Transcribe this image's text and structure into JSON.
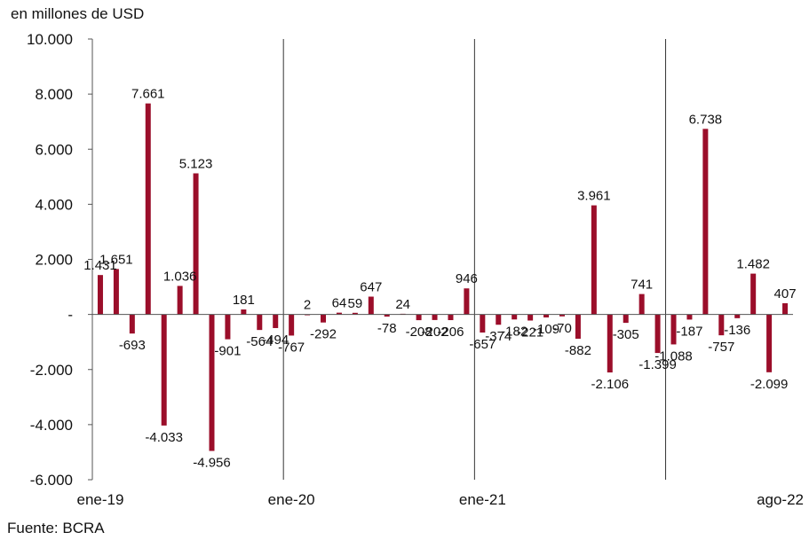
{
  "chart_data": {
    "type": "bar",
    "unit_label": "en millones de USD",
    "source": "Fuente: BCRA",
    "ylim": [
      -6000,
      10000
    ],
    "y_ticks": [
      {
        "value": 10000,
        "label": "10.000"
      },
      {
        "value": 8000,
        "label": "8.000"
      },
      {
        "value": 6000,
        "label": "6.000"
      },
      {
        "value": 4000,
        "label": "4.000"
      },
      {
        "value": 2000,
        "label": "2.000"
      },
      {
        "value": 0,
        "label": "-"
      },
      {
        "value": -2000,
        "label": "-2.000"
      },
      {
        "value": -4000,
        "label": "-4.000"
      },
      {
        "value": -6000,
        "label": "-6.000"
      }
    ],
    "x_tick_labels": [
      {
        "index": 0,
        "label": "ene-19"
      },
      {
        "index": 12,
        "label": "ene-20"
      },
      {
        "index": 24,
        "label": "ene-21"
      },
      {
        "index": 43,
        "label": "ago-22"
      }
    ],
    "year_separators_after_index": [
      11,
      23,
      35
    ],
    "bar_color": "#9b0e2a",
    "series": [
      {
        "values": [
          1431,
          1651,
          -693,
          7661,
          -4033,
          1036,
          5123,
          -4956,
          -901,
          181,
          -564,
          -494,
          -767,
          2,
          -292,
          64,
          59,
          647,
          -78,
          24,
          -208,
          -202,
          -206,
          946,
          -657,
          -374,
          -182,
          -221,
          -109,
          -70,
          -882,
          3961,
          -2106,
          -305,
          741,
          -1399,
          -1088,
          -187,
          6738,
          -757,
          -136,
          1482,
          -2099,
          407
        ],
        "labels": [
          "1.431",
          "1.651",
          "-693",
          "7.661",
          "-4.033",
          "1.036",
          "5.123",
          "-4.956",
          "-901",
          "181",
          "-564",
          "-494",
          "-767",
          "2",
          "-292",
          "64",
          "59",
          "647",
          "-78",
          "24",
          "-208",
          "-202",
          "-206",
          "946",
          "-657",
          "-374",
          "-182",
          "-221",
          "-109",
          "-70",
          "-882",
          "3.961",
          "-2.106",
          "-305",
          "741",
          "-1.399",
          "-1.088",
          "-187",
          "6.738",
          "-757",
          "-136",
          "1.482",
          "-2.099",
          "407"
        ]
      }
    ]
  }
}
